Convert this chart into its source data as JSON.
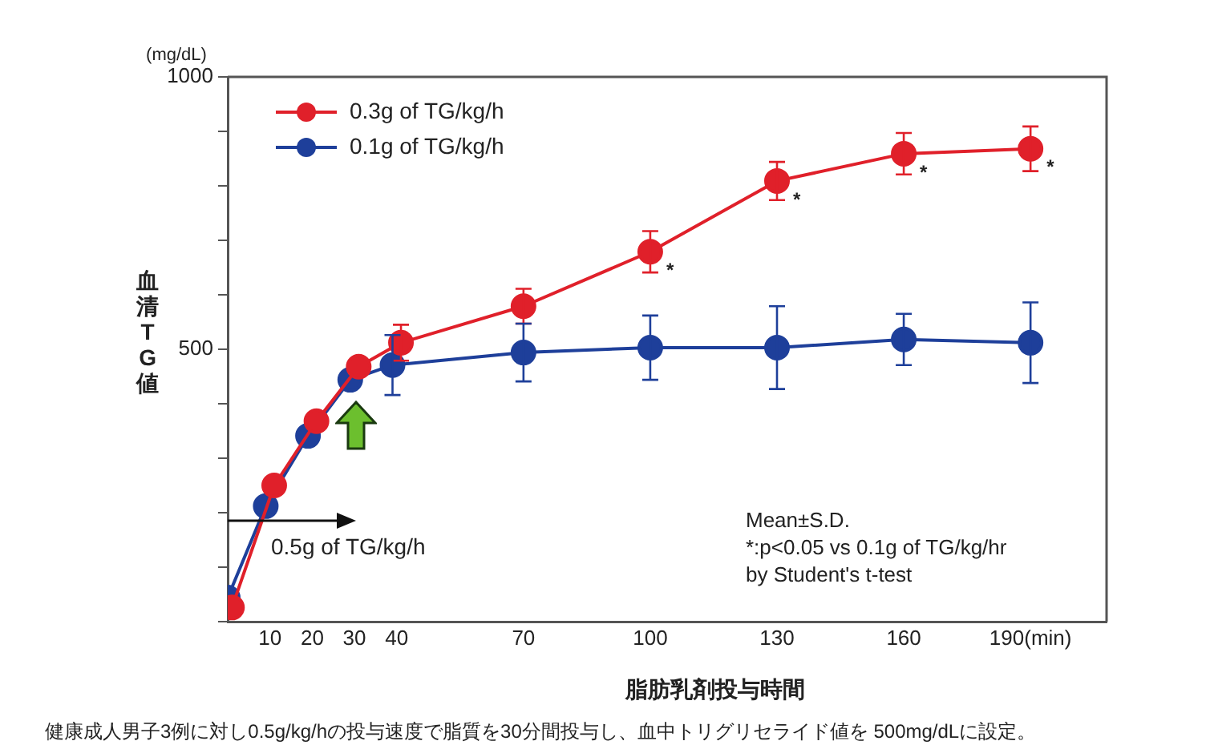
{
  "chart_data": {
    "type": "line",
    "xlabel": "脂肪乳剤投与時間",
    "ylabel": "血清TG値",
    "xlim": [
      0,
      208
    ],
    "xticks": [
      10,
      20,
      30,
      40,
      70,
      100,
      130,
      160,
      {
        "value": 190,
        "label": "190(min)"
      }
    ],
    "ylim": [
      0,
      1000
    ],
    "yticks": [
      {
        "value": 0,
        "label": null
      },
      {
        "value": 100,
        "label": null
      },
      {
        "value": 200,
        "label": null
      },
      {
        "value": 300,
        "label": null
      },
      {
        "value": 400,
        "label": null
      },
      500,
      {
        "value": 600,
        "label": null
      },
      {
        "value": 700,
        "label": null
      },
      {
        "value": 800,
        "label": null
      },
      {
        "value": 900,
        "label": null
      },
      1000
    ],
    "grid": false,
    "legend": "top left",
    "marker": "circle",
    "line_style": "solid",
    "series": [
      {
        "name": "0.3g of TG/kg/h",
        "color": "#e0202a",
        "x": [
          1,
          11,
          21,
          31,
          41,
          70,
          100,
          130,
          160,
          190
        ],
        "values": [
          26,
          250,
          368,
          468,
          512,
          579,
          679,
          809,
          859,
          868
        ],
        "errors": [
          null,
          null,
          null,
          null,
          33,
          32,
          38,
          35,
          38,
          41
        ]
      },
      {
        "name": "0.1g of TG/kg/h",
        "color": "#1e3f9a",
        "x": [
          0,
          9,
          19,
          29,
          39,
          70,
          100,
          130,
          160,
          190
        ],
        "values": [
          44,
          212,
          341,
          444,
          471,
          494,
          503,
          503,
          518,
          512
        ],
        "errors": [
          null,
          null,
          null,
          null,
          55,
          53,
          59,
          76,
          47,
          74
        ]
      }
    ],
    "annotations": [
      "(mg/dL)",
      "0.5g of TG/kg/h",
      {
        "text": "*",
        "x": 100,
        "y": 679
      },
      {
        "text": "*",
        "x": 130,
        "y": 809
      },
      {
        "text": "*",
        "x": 160,
        "y": 859
      },
      {
        "text": "*",
        "x": 190,
        "y": 868
      },
      "Mean±S.D.\n*:p<0.05 vs 0.1g of TG/kg/hr\nby Student's t-test",
      "健康成人男子3例に対し0.5g/kg/hの投与速度で脂質を30分間投与し、血中トリグリセライド値を 500mg/dLに設定。"
    ]
  }
}
